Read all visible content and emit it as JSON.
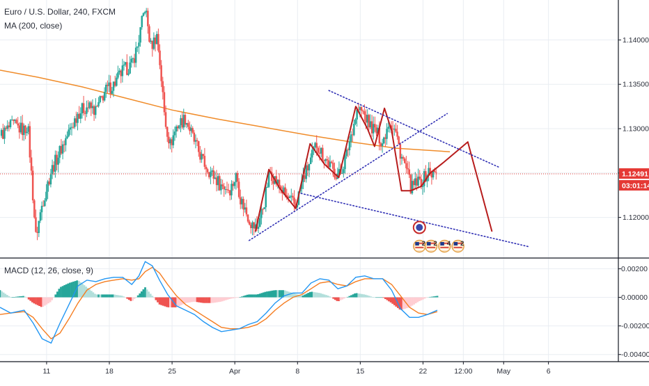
{
  "header": {
    "title": "Euro / U.S. Dollar, 240, FXCM",
    "ma_label": "MA (200, close)",
    "macd_label": "MACD (12, 26, close, 9)"
  },
  "colors": {
    "up": "#26a69a",
    "down": "#ef5350",
    "ma": "#f08c2a",
    "macd": "#2196f3",
    "signal": "#f57c1f",
    "pattern": "#b71c1c",
    "channel": "#2f2fb4",
    "price_tag": "#e53935",
    "grid": "#e9edf2"
  },
  "chart_data": [
    {
      "type": "candlestick",
      "title": "Euro / U.S. Dollar, 240, FXCM",
      "indicator": "MA (200, close)",
      "ylim": [
        1.1155,
        1.1445
      ],
      "y_ticks": [
        1.12,
        1.125,
        1.13,
        1.135,
        1.14
      ],
      "y_tick_labels": [
        "1.12000",
        "1.12500",
        "1.13000",
        "1.13500",
        "1.14000"
      ],
      "x_ticks": [
        {
          "label": "11",
          "t": 11
        },
        {
          "label": "18",
          "t": 18
        },
        {
          "label": "25",
          "t": 25
        },
        {
          "label": "Apr",
          "t": 32
        },
        {
          "label": "8",
          "t": 39
        },
        {
          "label": "15",
          "t": 46
        },
        {
          "label": "22",
          "t": 53
        },
        {
          "label": "12:00",
          "t": 57.5
        },
        {
          "label": "May",
          "t": 62
        },
        {
          "label": "6",
          "t": 67
        }
      ],
      "xlim": [
        5.8,
        74.8
      ],
      "last_price": 1.12491,
      "last_price_label": "1.12491",
      "countdown": "03:01:14",
      "close_path": [
        [
          5.8,
          1.1292
        ],
        [
          7.2,
          1.1304
        ],
        [
          8.5,
          1.1298
        ],
        [
          8.9,
          1.1305
        ],
        [
          9.4,
          1.1235
        ],
        [
          9.8,
          1.1178
        ],
        [
          10.5,
          1.1215
        ],
        [
          11.5,
          1.1252
        ],
        [
          12.5,
          1.1275
        ],
        [
          13.5,
          1.1296
        ],
        [
          14.5,
          1.1318
        ],
        [
          15.5,
          1.1325
        ],
        [
          16.5,
          1.132
        ],
        [
          17.5,
          1.1342
        ],
        [
          18.5,
          1.135
        ],
        [
          19.5,
          1.1365
        ],
        [
          20.5,
          1.1372
        ],
        [
          21.2,
          1.1395
        ],
        [
          21.6,
          1.1418
        ],
        [
          22.0,
          1.1438
        ],
        [
          22.6,
          1.1392
        ],
        [
          23.3,
          1.1405
        ],
        [
          23.7,
          1.1368
        ],
        [
          24.2,
          1.131
        ],
        [
          24.8,
          1.1282
        ],
        [
          25.5,
          1.1303
        ],
        [
          26.5,
          1.1312
        ],
        [
          27.5,
          1.1285
        ],
        [
          28.5,
          1.1262
        ],
        [
          29.5,
          1.1248
        ],
        [
          30.5,
          1.1236
        ],
        [
          31.5,
          1.1232
        ],
        [
          32.2,
          1.1248
        ],
        [
          32.6,
          1.1222
        ],
        [
          33.3,
          1.1205
        ],
        [
          34.0,
          1.119
        ],
        [
          34.5,
          1.1188
        ],
        [
          35.3,
          1.1218
        ],
        [
          35.9,
          1.1252
        ],
        [
          36.8,
          1.1238
        ],
        [
          37.8,
          1.1222
        ],
        [
          38.8,
          1.1213
        ],
        [
          39.6,
          1.1243
        ],
        [
          40.4,
          1.1262
        ],
        [
          41.1,
          1.1283
        ],
        [
          42.0,
          1.1268
        ],
        [
          43.0,
          1.1252
        ],
        [
          43.7,
          1.1248
        ],
        [
          44.4,
          1.1268
        ],
        [
          45.0,
          1.1295
        ],
        [
          45.7,
          1.1322
        ],
        [
          46.3,
          1.1318
        ],
        [
          47.0,
          1.1305
        ],
        [
          47.8,
          1.1296
        ],
        [
          48.5,
          1.1284
        ],
        [
          49.2,
          1.131
        ],
        [
          49.9,
          1.1298
        ],
        [
          50.5,
          1.1272
        ],
        [
          51.1,
          1.1255
        ],
        [
          51.7,
          1.1232
        ],
        [
          52.2,
          1.1238
        ],
        [
          53.0,
          1.1242
        ],
        [
          53.6,
          1.1252
        ],
        [
          54.2,
          1.1248
        ],
        [
          54.6,
          1.1251
        ]
      ],
      "ma_line": [
        [
          5.8,
          1.1366
        ],
        [
          10,
          1.1358
        ],
        [
          15,
          1.1347
        ],
        [
          20,
          1.1334
        ],
        [
          25,
          1.1321
        ],
        [
          30,
          1.1311
        ],
        [
          35,
          1.1302
        ],
        [
          40,
          1.1293
        ],
        [
          45,
          1.1285
        ],
        [
          50,
          1.1278
        ],
        [
          56,
          1.1274
        ]
      ],
      "annotations": {
        "pattern_line": [
          [
            34.3,
            1.1184
          ],
          [
            35.8,
            1.1254
          ],
          [
            37.0,
            1.1233
          ],
          [
            38.8,
            1.121
          ],
          [
            40.4,
            1.1283
          ],
          [
            42.0,
            1.126
          ],
          [
            43.6,
            1.1245
          ],
          [
            45.5,
            1.1325
          ],
          [
            46.8,
            1.13
          ],
          [
            47.6,
            1.128
          ],
          [
            48.7,
            1.1323
          ],
          [
            49.5,
            1.1298
          ],
          [
            50.6,
            1.123
          ],
          [
            51.6,
            1.123
          ],
          [
            52.8,
            1.1235
          ],
          [
            53.8,
            1.125
          ],
          [
            55.3,
            1.1262
          ],
          [
            58.0,
            1.1285
          ],
          [
            60.7,
            1.1184
          ]
        ],
        "channel_lines": [
          [
            [
              42.5,
              1.1343
            ],
            [
              61.6,
              1.1256
            ]
          ],
          [
            [
              39.4,
              1.1227
            ],
            [
              64.8,
              1.1167
            ]
          ],
          [
            [
              33.6,
              1.1174
            ],
            [
              55.7,
              1.1317
            ]
          ]
        ],
        "event_markers": [
          {
            "kind": "globe",
            "t": 52.6
          },
          {
            "kind": "flag",
            "t": 52.6,
            "count": "2"
          },
          {
            "kind": "flag",
            "t": 53.9,
            "count": "2"
          },
          {
            "kind": "flag",
            "t": 55.4,
            "count": "4"
          },
          {
            "kind": "flag",
            "t": 56.9,
            "count": "2"
          }
        ]
      }
    },
    {
      "type": "macd",
      "title": "MACD (12, 26, close, 9)",
      "ylim": [
        -0.0045,
        0.0027
      ],
      "y_ticks": [
        0.002,
        0.0,
        -0.002,
        -0.004
      ],
      "y_tick_labels": [
        "0.00200",
        "0.00000",
        "-0.00200",
        "-0.00400"
      ],
      "macd_path": [
        [
          5.8,
          -0.0007
        ],
        [
          7,
          -0.0011
        ],
        [
          8.5,
          -0.0009
        ],
        [
          9.5,
          -0.0018
        ],
        [
          10.5,
          -0.0029
        ],
        [
          11.5,
          -0.0032
        ],
        [
          12.5,
          -0.0018
        ],
        [
          13.5,
          -0.0005
        ],
        [
          14.5,
          0.0008
        ],
        [
          15.5,
          0.0012
        ],
        [
          16.5,
          0.0011
        ],
        [
          17.5,
          0.0013
        ],
        [
          18.5,
          0.0014
        ],
        [
          19.5,
          0.0014
        ],
        [
          20.5,
          0.0009
        ],
        [
          21.3,
          0.0015
        ],
        [
          22,
          0.0025
        ],
        [
          22.8,
          0.0022
        ],
        [
          23.6,
          0.0012
        ],
        [
          24.5,
          0.0002
        ],
        [
          25.5,
          -0.0006
        ],
        [
          26.5,
          -0.0009
        ],
        [
          27.5,
          -0.0012
        ],
        [
          28.5,
          -0.0017
        ],
        [
          29.5,
          -0.0021
        ],
        [
          30.5,
          -0.0024
        ],
        [
          31.5,
          -0.0023
        ],
        [
          32.5,
          -0.0022
        ],
        [
          33.5,
          -0.0019
        ],
        [
          34.5,
          -0.0017
        ],
        [
          35.5,
          -0.0011
        ],
        [
          36.5,
          -0.0004
        ],
        [
          37.5,
          0.0001
        ],
        [
          38.5,
          0.0003
        ],
        [
          39.5,
          0.0003
        ],
        [
          40.5,
          0.001
        ],
        [
          41.5,
          0.0013
        ],
        [
          42.5,
          0.0012
        ],
        [
          43.5,
          0.0006
        ],
        [
          44.5,
          0.0008
        ],
        [
          45.5,
          0.0014
        ],
        [
          46.5,
          0.0015
        ],
        [
          47.5,
          0.0013
        ],
        [
          48.5,
          0.0013
        ],
        [
          49.5,
          0.0005
        ],
        [
          50.5,
          -0.0008
        ],
        [
          51.5,
          -0.0014
        ],
        [
          52.5,
          -0.0014
        ],
        [
          53.5,
          -0.0012
        ],
        [
          54.6,
          -0.0009
        ]
      ],
      "signal_path": [
        [
          5.8,
          -0.0012
        ],
        [
          7,
          -0.0011
        ],
        [
          8.5,
          -0.001
        ],
        [
          9.5,
          -0.0014
        ],
        [
          10.5,
          -0.0022
        ],
        [
          11.5,
          -0.0029
        ],
        [
          12.5,
          -0.0025
        ],
        [
          13.5,
          -0.0015
        ],
        [
          14.5,
          -0.0004
        ],
        [
          15.5,
          0.0005
        ],
        [
          16.5,
          0.0009
        ],
        [
          17.5,
          0.0011
        ],
        [
          18.5,
          0.0012
        ],
        [
          19.5,
          0.0013
        ],
        [
          20.5,
          0.0012
        ],
        [
          21.3,
          0.0013
        ],
        [
          22,
          0.0018
        ],
        [
          22.8,
          0.0021
        ],
        [
          23.6,
          0.0017
        ],
        [
          24.5,
          0.0009
        ],
        [
          25.5,
          0.0001
        ],
        [
          26.5,
          -0.0005
        ],
        [
          27.5,
          -0.0009
        ],
        [
          28.5,
          -0.0013
        ],
        [
          29.5,
          -0.0017
        ],
        [
          30.5,
          -0.0021
        ],
        [
          31.5,
          -0.0022
        ],
        [
          32.5,
          -0.0022
        ],
        [
          33.5,
          -0.0021
        ],
        [
          34.5,
          -0.0019
        ],
        [
          35.5,
          -0.0015
        ],
        [
          36.5,
          -0.0009
        ],
        [
          37.5,
          -0.0004
        ],
        [
          38.5,
          0.0
        ],
        [
          39.5,
          0.0002
        ],
        [
          40.5,
          0.0006
        ],
        [
          41.5,
          0.001
        ],
        [
          42.5,
          0.0011
        ],
        [
          43.5,
          0.0009
        ],
        [
          44.5,
          0.0008
        ],
        [
          45.5,
          0.0011
        ],
        [
          46.5,
          0.0013
        ],
        [
          47.5,
          0.0013
        ],
        [
          48.5,
          0.0013
        ],
        [
          49.5,
          0.0009
        ],
        [
          50.5,
          0.0001
        ],
        [
          51.5,
          -0.0007
        ],
        [
          52.5,
          -0.0011
        ],
        [
          53.5,
          -0.0012
        ],
        [
          54.6,
          -0.001
        ]
      ]
    }
  ]
}
